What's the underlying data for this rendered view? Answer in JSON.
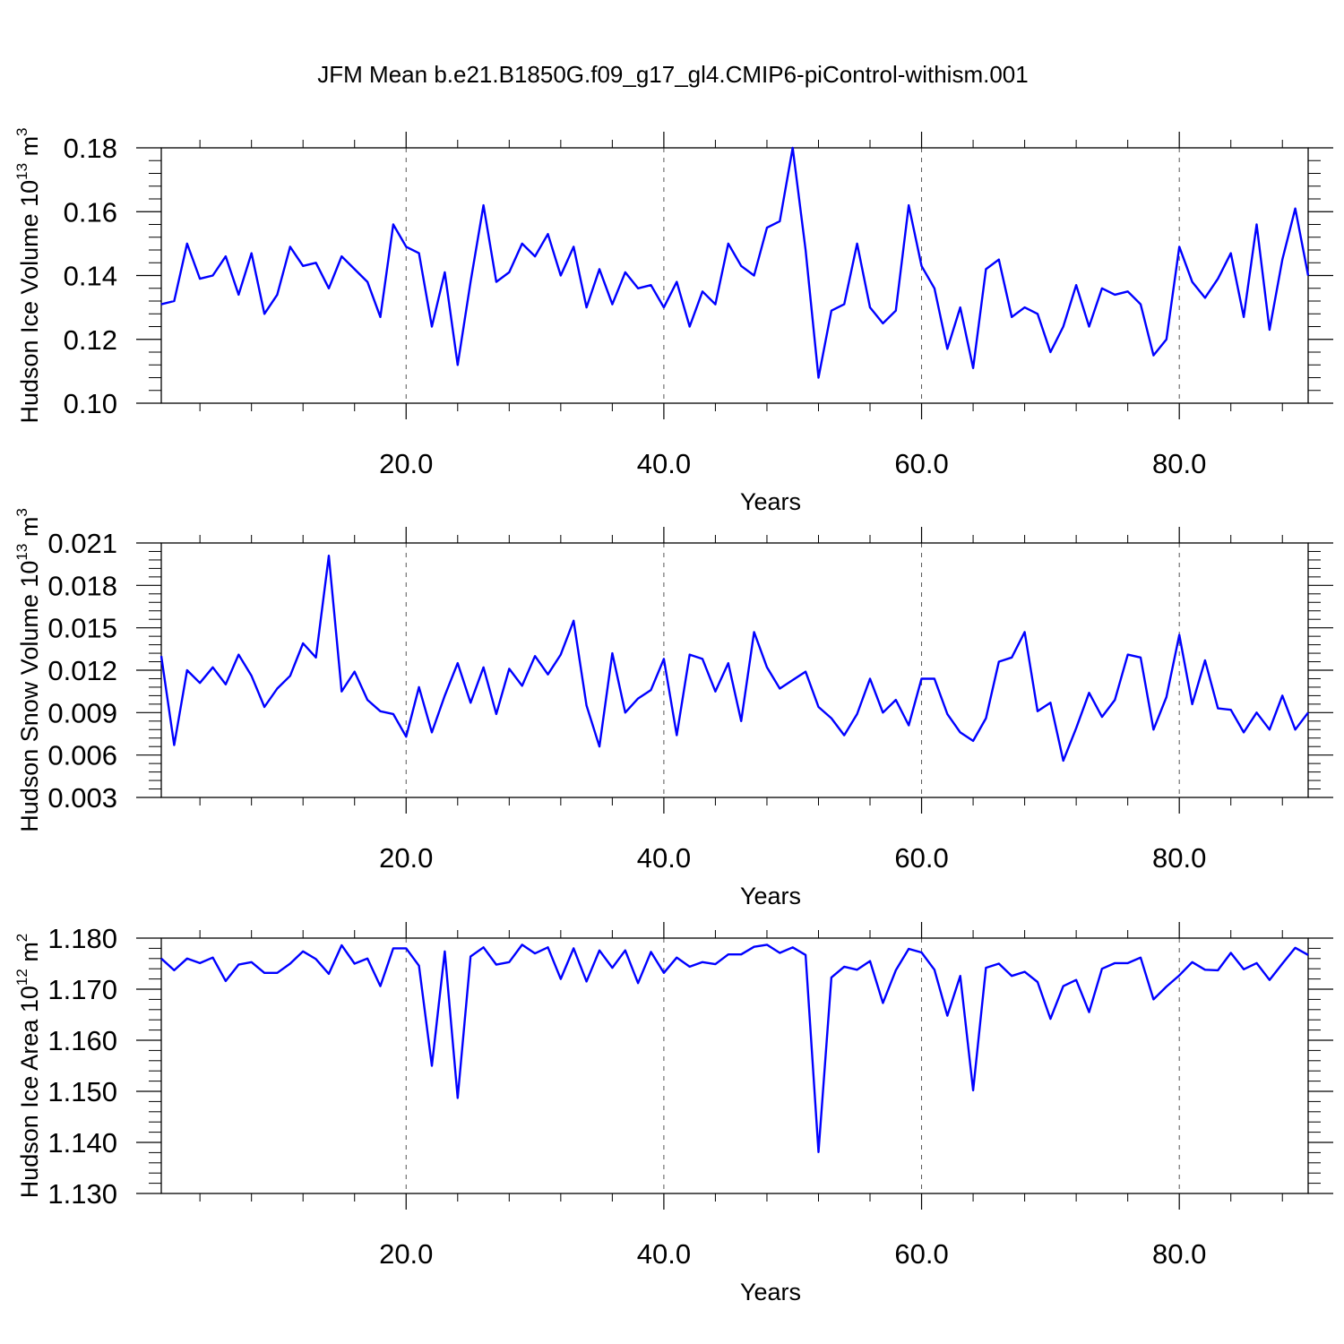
{
  "title": "JFM Mean b.e21.B1850G.f09_g17_gl4.CMIP6-piControl-withism.001",
  "colors": {
    "series": "#0000ff",
    "axis": "#000000",
    "grid": "#555555"
  },
  "chart_data": [
    {
      "type": "line",
      "xlabel": "Years",
      "ylabel": {
        "text": "Hudson Ice Volume 10",
        "exponent": "13",
        "unit": " m",
        "unit_exponent": "3"
      },
      "xlim": [
        1,
        90
      ],
      "ylim": [
        0.1,
        0.18
      ],
      "xticks": [
        20,
        40,
        60,
        80
      ],
      "xtick_labels": [
        "20.0",
        "40.0",
        "60.0",
        "80.0"
      ],
      "yticks": [
        0.1,
        0.12,
        0.14,
        0.16,
        0.18
      ],
      "ytick_labels": [
        "0.10",
        "0.12",
        "0.14",
        "0.16",
        "0.18"
      ],
      "grid": "vertical dashed at major x ticks",
      "series": [
        {
          "x": [
            1,
            2,
            3,
            4,
            5,
            6,
            7,
            8,
            9,
            10,
            11,
            12,
            13,
            14,
            15,
            16,
            17,
            18,
            19,
            20,
            21,
            22,
            23,
            24,
            25,
            26,
            27,
            28,
            29,
            30,
            31,
            32,
            33,
            34,
            35,
            36,
            37,
            38,
            39,
            40,
            41,
            42,
            43,
            44,
            45,
            46,
            47,
            48,
            49,
            50,
            51,
            52,
            53,
            54,
            55,
            56,
            57,
            58,
            59,
            60,
            61,
            62,
            63,
            64,
            65,
            66,
            67,
            68,
            69,
            70,
            71,
            72,
            73,
            74,
            75,
            76,
            77,
            78,
            79,
            80,
            81,
            82,
            83,
            84,
            85,
            86,
            87,
            88,
            89,
            90
          ],
          "values": [
            0.131,
            0.132,
            0.15,
            0.139,
            0.14,
            0.146,
            0.134,
            0.147,
            0.128,
            0.134,
            0.149,
            0.143,
            0.144,
            0.136,
            0.146,
            0.142,
            0.138,
            0.127,
            0.156,
            0.149,
            0.147,
            0.124,
            0.141,
            0.112,
            0.138,
            0.162,
            0.138,
            0.141,
            0.15,
            0.146,
            0.153,
            0.14,
            0.149,
            0.13,
            0.142,
            0.131,
            0.141,
            0.136,
            0.137,
            0.13,
            0.138,
            0.124,
            0.135,
            0.131,
            0.15,
            0.143,
            0.14,
            0.155,
            0.157,
            0.18,
            0.148,
            0.108,
            0.129,
            0.131,
            0.15,
            0.13,
            0.125,
            0.129,
            0.162,
            0.143,
            0.136,
            0.117,
            0.13,
            0.111,
            0.142,
            0.145,
            0.127,
            0.13,
            0.128,
            0.116,
            0.124,
            0.137,
            0.124,
            0.136,
            0.134,
            0.135,
            0.131,
            0.115,
            0.12,
            0.149,
            0.138,
            0.133,
            0.139,
            0.147,
            0.127,
            0.156,
            0.123,
            0.145,
            0.161,
            0.14
          ]
        }
      ]
    },
    {
      "type": "line",
      "xlabel": "Years",
      "ylabel": {
        "text": "Hudson Snow Volume 10",
        "exponent": "13",
        "unit": " m",
        "unit_exponent": "3"
      },
      "xlim": [
        1,
        90
      ],
      "ylim": [
        0.003,
        0.021
      ],
      "xticks": [
        20,
        40,
        60,
        80
      ],
      "xtick_labels": [
        "20.0",
        "40.0",
        "60.0",
        "80.0"
      ],
      "yticks": [
        0.003,
        0.006,
        0.009,
        0.012,
        0.015,
        0.018,
        0.021
      ],
      "ytick_labels": [
        "0.003",
        "0.006",
        "0.009",
        "0.012",
        "0.015",
        "0.018",
        "0.021"
      ],
      "grid": "vertical dashed at major x ticks",
      "series": [
        {
          "x": [
            1,
            2,
            3,
            4,
            5,
            6,
            7,
            8,
            9,
            10,
            11,
            12,
            13,
            14,
            15,
            16,
            17,
            18,
            19,
            20,
            21,
            22,
            23,
            24,
            25,
            26,
            27,
            28,
            29,
            30,
            31,
            32,
            33,
            34,
            35,
            36,
            37,
            38,
            39,
            40,
            41,
            42,
            43,
            44,
            45,
            46,
            47,
            48,
            49,
            50,
            51,
            52,
            53,
            54,
            55,
            56,
            57,
            58,
            59,
            60,
            61,
            62,
            63,
            64,
            65,
            66,
            67,
            68,
            69,
            70,
            71,
            72,
            73,
            74,
            75,
            76,
            77,
            78,
            79,
            80,
            81,
            82,
            83,
            84,
            85,
            86,
            87,
            88,
            89,
            90
          ],
          "values": [
            0.013,
            0.0067,
            0.012,
            0.0111,
            0.0122,
            0.011,
            0.0131,
            0.0116,
            0.0094,
            0.0107,
            0.0116,
            0.0139,
            0.0129,
            0.0201,
            0.0105,
            0.0119,
            0.0099,
            0.0091,
            0.0089,
            0.0073,
            0.0108,
            0.0076,
            0.0102,
            0.0125,
            0.0097,
            0.0122,
            0.0089,
            0.0121,
            0.0109,
            0.013,
            0.0117,
            0.0131,
            0.0155,
            0.0095,
            0.0066,
            0.0132,
            0.009,
            0.01,
            0.0106,
            0.0128,
            0.0074,
            0.0131,
            0.0128,
            0.0105,
            0.0125,
            0.0084,
            0.0147,
            0.0122,
            0.0107,
            0.0113,
            0.0119,
            0.0094,
            0.0086,
            0.0074,
            0.0089,
            0.0114,
            0.009,
            0.0099,
            0.0081,
            0.0114,
            0.0114,
            0.0089,
            0.0076,
            0.007,
            0.0086,
            0.0126,
            0.0129,
            0.0147,
            0.0091,
            0.0097,
            0.0056,
            0.0079,
            0.0104,
            0.0087,
            0.0099,
            0.0131,
            0.0129,
            0.0078,
            0.0101,
            0.0145,
            0.0096,
            0.0127,
            0.0093,
            0.0092,
            0.0076,
            0.009,
            0.0078,
            0.0102,
            0.0078,
            0.009
          ]
        }
      ]
    },
    {
      "type": "line",
      "xlabel": "Years",
      "ylabel": {
        "text": "Hudson Ice Area 10",
        "exponent": "12",
        "unit": " m",
        "unit_exponent": "2"
      },
      "xlim": [
        1,
        90
      ],
      "ylim": [
        1.13,
        1.18
      ],
      "xticks": [
        20,
        40,
        60,
        80
      ],
      "xtick_labels": [
        "20.0",
        "40.0",
        "60.0",
        "80.0"
      ],
      "yticks": [
        1.13,
        1.14,
        1.15,
        1.16,
        1.17,
        1.18
      ],
      "ytick_labels": [
        "1.130",
        "1.140",
        "1.150",
        "1.160",
        "1.170",
        "1.180"
      ],
      "grid": "vertical dashed at major x ticks",
      "series": [
        {
          "x": [
            1,
            2,
            3,
            4,
            5,
            6,
            7,
            8,
            9,
            10,
            11,
            12,
            13,
            14,
            15,
            16,
            17,
            18,
            19,
            20,
            21,
            22,
            23,
            24,
            25,
            26,
            27,
            28,
            29,
            30,
            31,
            32,
            33,
            34,
            35,
            36,
            37,
            38,
            39,
            40,
            41,
            42,
            43,
            44,
            45,
            46,
            47,
            48,
            49,
            50,
            51,
            52,
            53,
            54,
            55,
            56,
            57,
            58,
            59,
            60,
            61,
            62,
            63,
            64,
            65,
            66,
            67,
            68,
            69,
            70,
            71,
            72,
            73,
            74,
            75,
            76,
            77,
            78,
            79,
            80,
            81,
            82,
            83,
            84,
            85,
            86,
            87,
            88,
            89,
            90
          ],
          "values": [
            1.176,
            1.1737,
            1.176,
            1.1751,
            1.1762,
            1.1716,
            1.1748,
            1.1753,
            1.1732,
            1.1732,
            1.175,
            1.1774,
            1.1759,
            1.173,
            1.1786,
            1.175,
            1.176,
            1.1706,
            1.178,
            1.178,
            1.1746,
            1.155,
            1.1774,
            1.1487,
            1.1764,
            1.1782,
            1.1748,
            1.1753,
            1.1787,
            1.177,
            1.1782,
            1.172,
            1.178,
            1.1715,
            1.1776,
            1.1742,
            1.1776,
            1.1712,
            1.1773,
            1.1732,
            1.1762,
            1.1744,
            1.1753,
            1.1749,
            1.1768,
            1.1768,
            1.1783,
            1.1787,
            1.1771,
            1.1782,
            1.1767,
            1.1381,
            1.1723,
            1.1744,
            1.1738,
            1.1755,
            1.1673,
            1.1737,
            1.1779,
            1.1772,
            1.1738,
            1.1648,
            1.1726,
            1.1502,
            1.1742,
            1.175,
            1.1726,
            1.1734,
            1.1714,
            1.1642,
            1.1706,
            1.1718,
            1.1655,
            1.174,
            1.1751,
            1.1751,
            1.1762,
            1.168,
            1.1705,
            1.1727,
            1.1753,
            1.1738,
            1.1737,
            1.1771,
            1.1739,
            1.1751,
            1.1718,
            1.175,
            1.1781,
            1.1767
          ]
        }
      ]
    }
  ]
}
